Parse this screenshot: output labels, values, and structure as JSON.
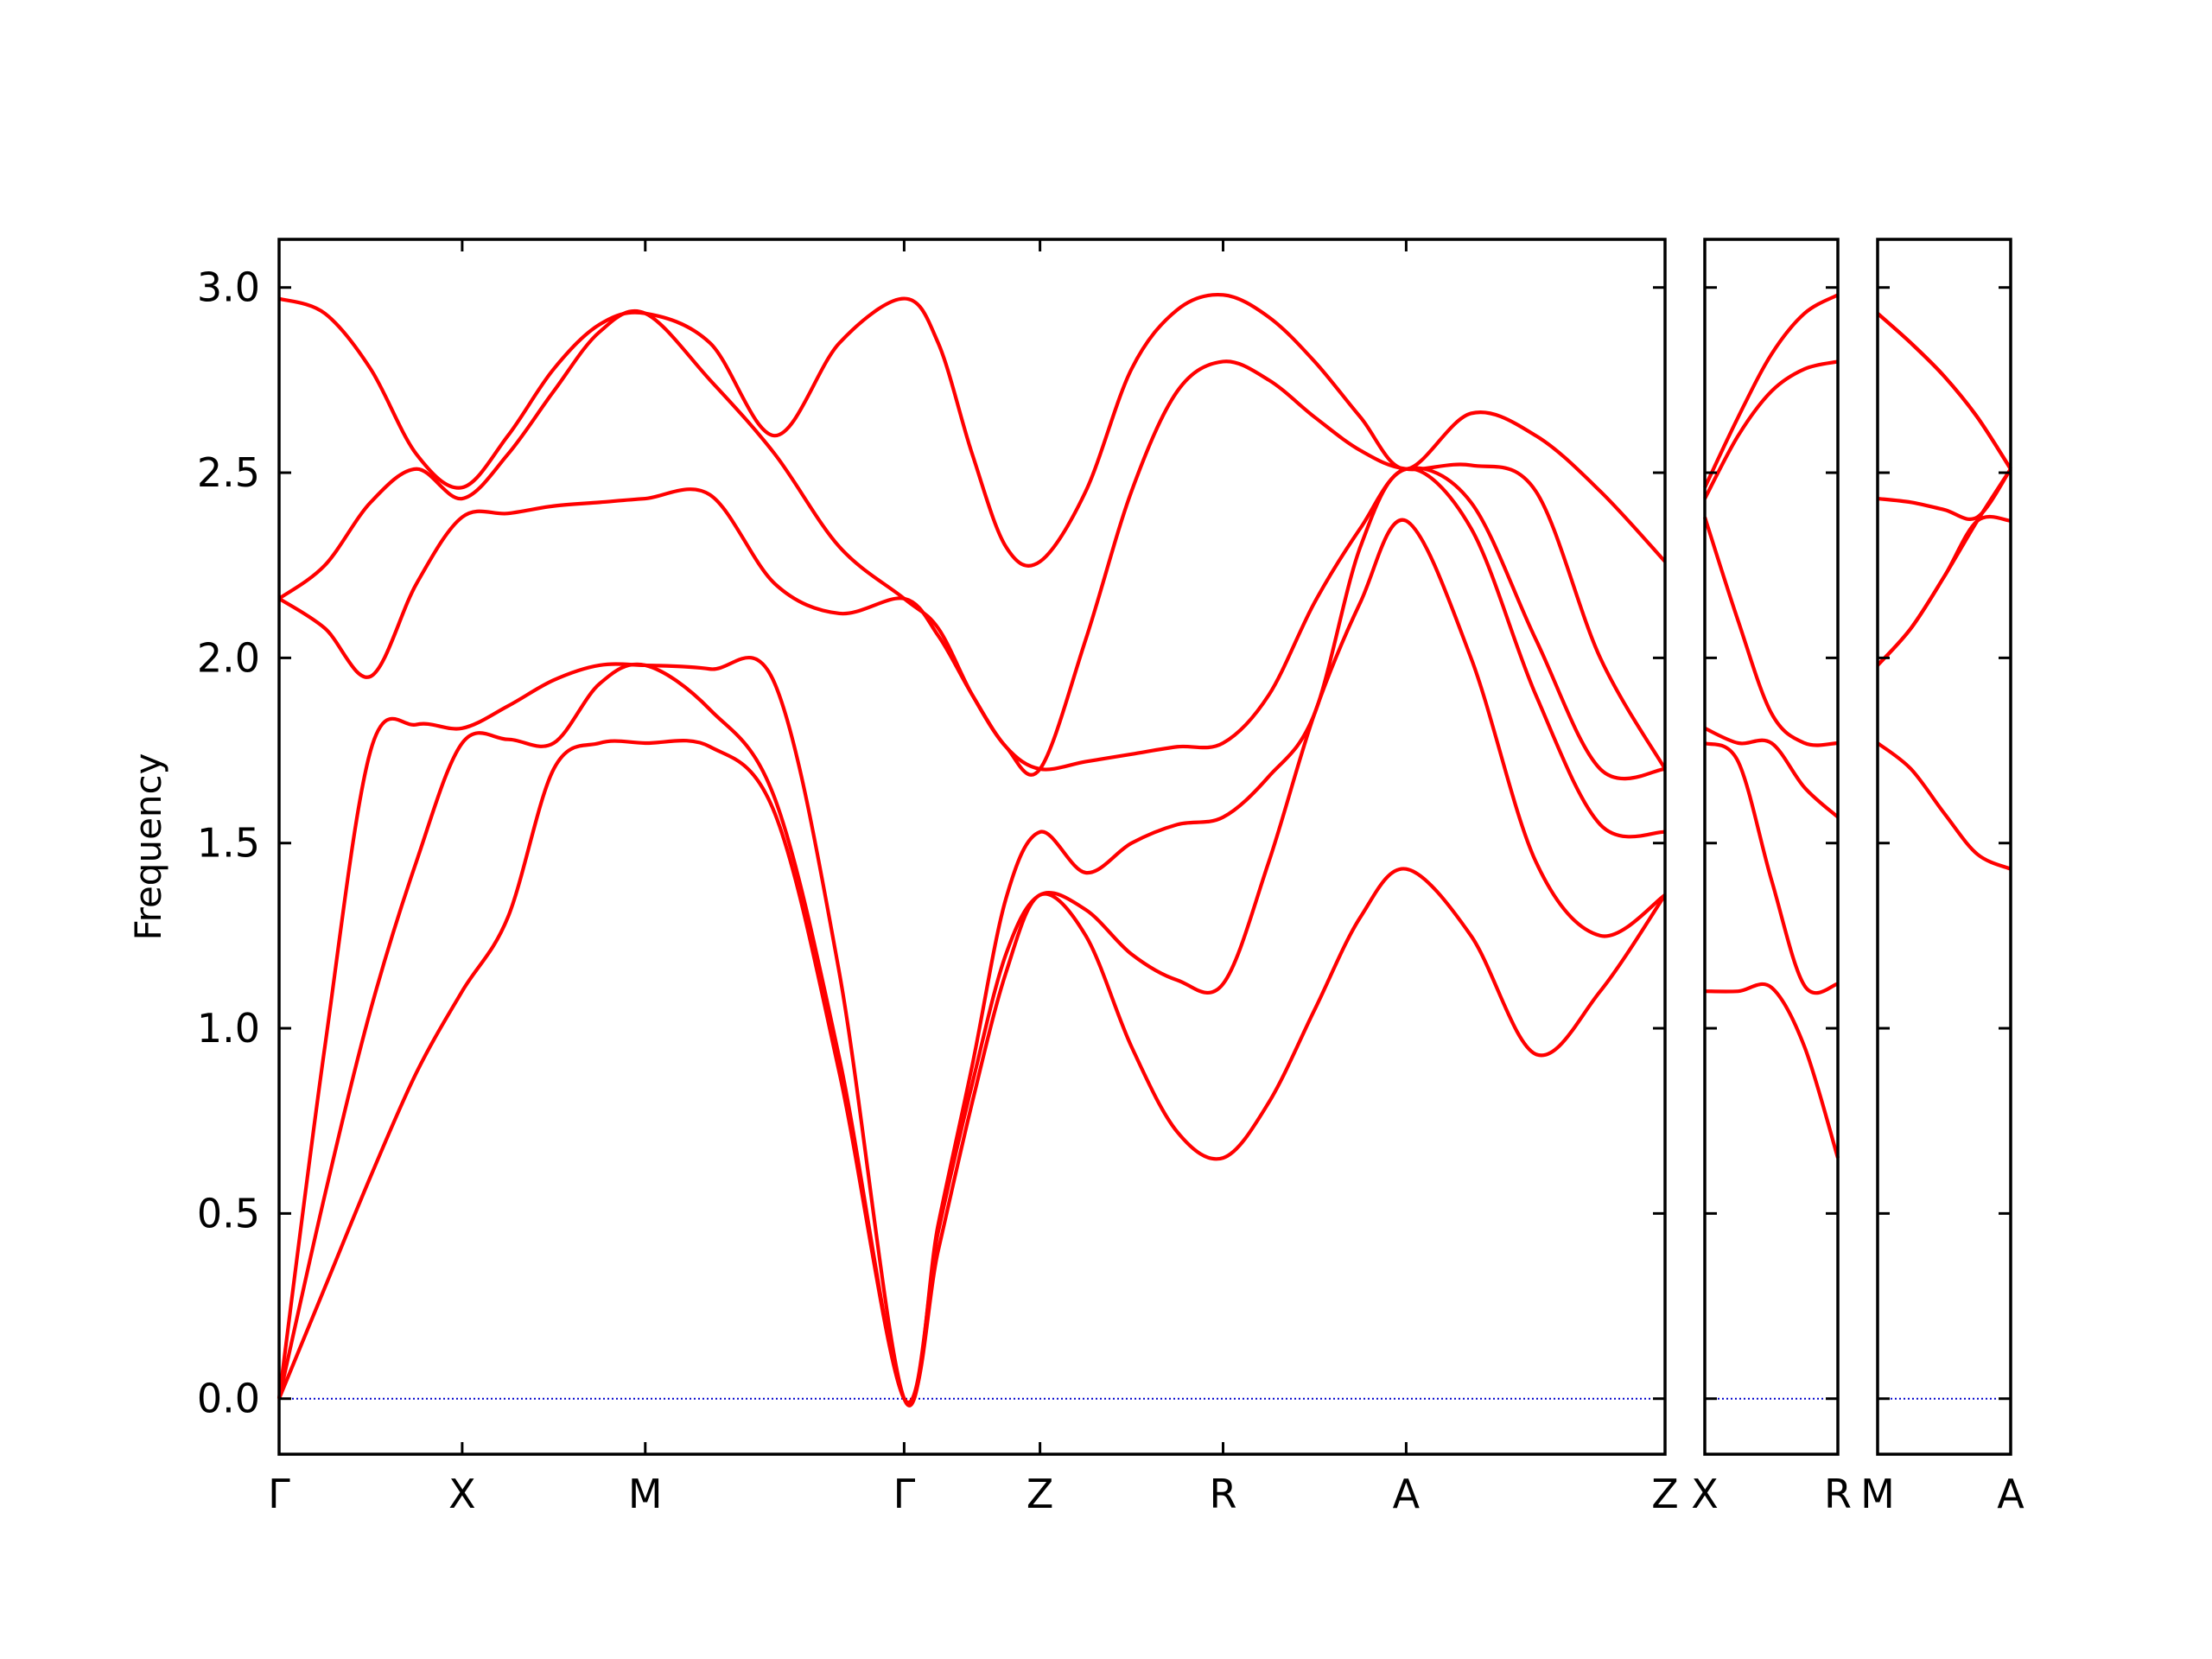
{
  "chart_data": [
    {
      "type": "line",
      "ylabel": "Frequency",
      "color": "#ff0000",
      "x": [
        0,
        0.125,
        0.25,
        0.375,
        0.5,
        0.625,
        0.75,
        0.875,
        1.0,
        1.177,
        1.354,
        1.53,
        1.707,
        1.8,
        1.893,
        1.985,
        2.078,
        2.203,
        2.328,
        2.453,
        2.578,
        2.703,
        2.828,
        2.953,
        3.078,
        3.255,
        3.432,
        3.608,
        3.785
      ],
      "series": [
        {
          "values": [
            0,
            0.3,
            0.6,
            0.88,
            1.1,
            1.3,
            1.7,
            1.77,
            1.77,
            1.76,
            1.58,
            0.88,
            0,
            0.4,
            0.8,
            1.15,
            1.36,
            1.25,
            0.95,
            0.72,
            0.65,
            0.8,
            1.05,
            1.3,
            1.43,
            1.25,
            0.93,
            1.1,
            1.36
          ]
        },
        {
          "values": [
            0,
            0.55,
            1.05,
            1.45,
            1.77,
            1.78,
            1.77,
            1.93,
            1.98,
            1.86,
            1.62,
            0.92,
            0,
            0.45,
            0.85,
            1.2,
            1.36,
            1.32,
            1.2,
            1.13,
            1.12,
            1.45,
            1.85,
            2.15,
            2.37,
            2.0,
            1.45,
            1.25,
            1.36
          ]
        },
        {
          "values": [
            0,
            0.95,
            1.75,
            1.82,
            1.81,
            1.87,
            1.94,
            1.98,
            1.98,
            1.97,
            1.93,
            1.15,
            0,
            0.47,
            0.9,
            1.35,
            1.53,
            1.42,
            1.5,
            1.55,
            1.57,
            1.68,
            1.85,
            2.3,
            2.51,
            2.35,
            1.9,
            1.55,
            1.53
          ]
        },
        {
          "values": [
            2.16,
            2.08,
            1.95,
            2.2,
            2.38,
            2.39,
            2.41,
            2.42,
            2.43,
            2.44,
            2.2,
            2.12,
            2.16,
            2.06,
            1.9,
            1.76,
            1.7,
            1.72,
            1.74,
            1.76,
            1.77,
            1.9,
            2.15,
            2.35,
            2.51,
            2.42,
            2.05,
            1.7,
            1.7
          ]
        },
        {
          "values": [
            2.16,
            2.25,
            2.42,
            2.51,
            2.43,
            2.55,
            2.72,
            2.88,
            2.93,
            2.75,
            2.55,
            2.3,
            2.16,
            2.08,
            1.9,
            1.76,
            1.7,
            2.05,
            2.45,
            2.72,
            2.8,
            2.75,
            2.65,
            2.56,
            2.51,
            2.52,
            2.45,
            2.0,
            1.7
          ]
        },
        {
          "values": [
            2.97,
            2.93,
            2.78,
            2.55,
            2.46,
            2.6,
            2.78,
            2.9,
            2.93,
            2.85,
            2.6,
            2.85,
            2.97,
            2.85,
            2.55,
            2.3,
            2.26,
            2.45,
            2.78,
            2.94,
            2.98,
            2.92,
            2.8,
            2.65,
            2.51,
            2.66,
            2.6,
            2.45,
            2.26
          ]
        }
      ],
      "xlim": [
        0,
        3.785
      ],
      "xticks": [
        {
          "value": 0,
          "label": "Γ"
        },
        {
          "value": 0.5,
          "label": "X"
        },
        {
          "value": 1.0,
          "label": "M"
        },
        {
          "value": 1.707,
          "label": "Γ"
        },
        {
          "value": 2.078,
          "label": "Z"
        },
        {
          "value": 2.578,
          "label": "R"
        },
        {
          "value": 3.078,
          "label": "A"
        },
        {
          "value": 3.785,
          "label": "Z"
        }
      ],
      "ylim": [
        -0.15,
        3.13
      ],
      "yticks": [
        {
          "value": 0,
          "label": "0.0"
        },
        0.5,
        {
          "value": 1,
          "label": "1.0"
        },
        1.5,
        {
          "value": 2,
          "label": "2.0"
        },
        2.5,
        {
          "value": 3,
          "label": "3.0"
        }
      ],
      "ytick_labels": true,
      "hline": {
        "y": 0,
        "color": "#0000cc",
        "style": "dotted"
      }
    },
    {
      "type": "line",
      "color": "#ff0000",
      "x": [
        0,
        0.093,
        0.186,
        0.278,
        0.371
      ],
      "series": [
        {
          "values": [
            1.1,
            1.1,
            1.11,
            0.95,
            0.65
          ]
        },
        {
          "values": [
            1.77,
            1.72,
            1.4,
            1.115,
            1.12
          ]
        },
        {
          "values": [
            1.81,
            1.77,
            1.77,
            1.65,
            1.57
          ]
        },
        {
          "values": [
            2.38,
            2.1,
            1.85,
            1.77,
            1.77
          ]
        },
        {
          "values": [
            2.43,
            2.6,
            2.72,
            2.78,
            2.8
          ]
        },
        {
          "values": [
            2.46,
            2.65,
            2.82,
            2.93,
            2.98
          ]
        }
      ],
      "xlim": [
        0,
        0.371
      ],
      "xticks": [
        {
          "value": 0,
          "label": "X"
        },
        {
          "value": 0.371,
          "label": "R"
        }
      ],
      "ylim": [
        -0.15,
        3.13
      ],
      "yticks": [
        0,
        0.5,
        1,
        1.5,
        2,
        2.5,
        3
      ],
      "ytick_labels": false,
      "hline": {
        "y": 0,
        "color": "#0000cc",
        "style": "dotted"
      }
    },
    {
      "type": "line",
      "color": "#ff0000",
      "x": [
        0,
        0.093,
        0.186,
        0.278,
        0.371
      ],
      "series": [
        {
          "values": [
            1.77,
            1.7,
            1.58,
            1.47,
            1.43
          ]
        },
        {
          "values": [
            1.98,
            2.08,
            2.22,
            2.37,
            2.37
          ]
        },
        {
          "values": [
            1.98,
            2.08,
            2.22,
            2.37,
            2.51
          ]
        },
        {
          "values": [
            2.43,
            2.42,
            2.4,
            2.38,
            2.51
          ]
        },
        {
          "values": [
            2.93,
            2.85,
            2.76,
            2.65,
            2.51
          ]
        },
        {
          "values": [
            2.93,
            2.85,
            2.76,
            2.65,
            2.51
          ]
        }
      ],
      "xlim": [
        0,
        0.371
      ],
      "xticks": [
        {
          "value": 0,
          "label": "M"
        },
        {
          "value": 0.371,
          "label": "A"
        }
      ],
      "ylim": [
        -0.15,
        3.13
      ],
      "yticks": [
        0,
        0.5,
        1,
        1.5,
        2,
        2.5,
        3
      ],
      "ytick_labels": false,
      "hline": {
        "y": 0,
        "color": "#0000cc",
        "style": "dotted"
      }
    }
  ]
}
